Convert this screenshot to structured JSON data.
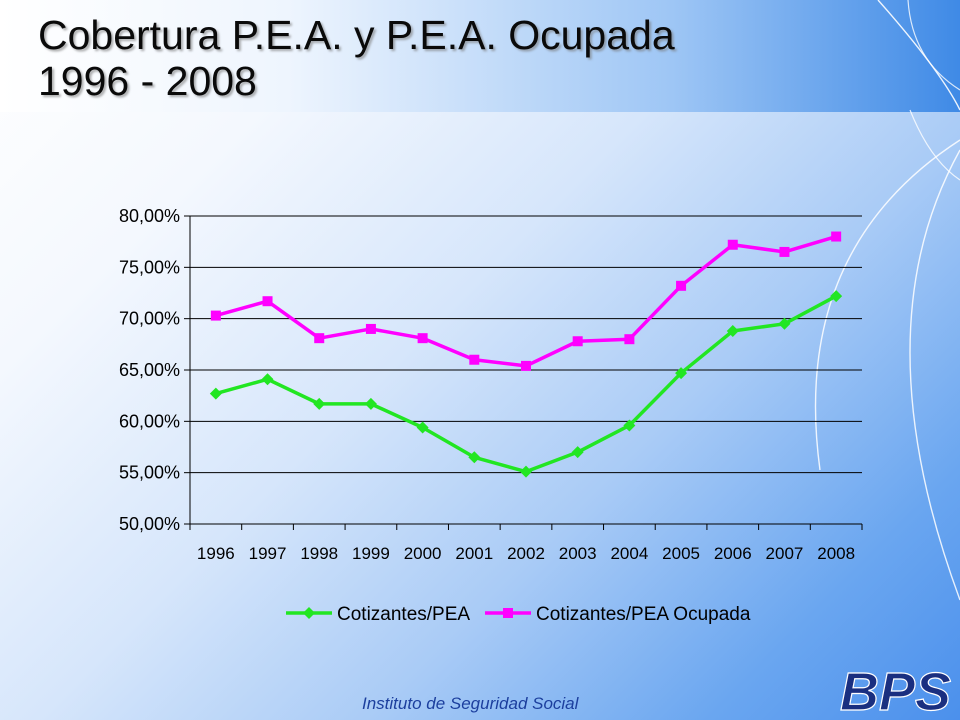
{
  "slide": {
    "title_line1": "Cobertura P.E.A. y P.E.A. Ocupada",
    "title_line2": "1996 - 2008",
    "footer": "Instituto de Seguridad Social",
    "logo_text": "BPS",
    "logo_icon": "bps-logo"
  },
  "chart_data": {
    "type": "line",
    "title": "",
    "xlabel": "",
    "ylabel": "",
    "categories": [
      "1996",
      "1997",
      "1998",
      "1999",
      "2000",
      "2001",
      "2002",
      "2003",
      "2004",
      "2005",
      "2006",
      "2007",
      "2008"
    ],
    "ylim": [
      0.5,
      0.8
    ],
    "yticks": [
      "50,00%",
      "55,00%",
      "60,00%",
      "65,00%",
      "70,00%",
      "75,00%",
      "80,00%"
    ],
    "grid": true,
    "legend_position": "bottom",
    "series": [
      {
        "name": "Cotizantes/PEA",
        "color": "#22e622",
        "marker": "diamond",
        "values": [
          0.627,
          0.641,
          0.617,
          0.617,
          0.594,
          0.565,
          0.551,
          0.57,
          0.596,
          0.647,
          0.688,
          0.695,
          0.722
        ]
      },
      {
        "name": "Cotizantes/PEA Ocupada",
        "color": "#ff00ff",
        "marker": "square",
        "values": [
          0.703,
          0.717,
          0.681,
          0.69,
          0.681,
          0.66,
          0.654,
          0.678,
          0.68,
          0.732,
          0.772,
          0.765,
          0.78
        ]
      }
    ]
  }
}
